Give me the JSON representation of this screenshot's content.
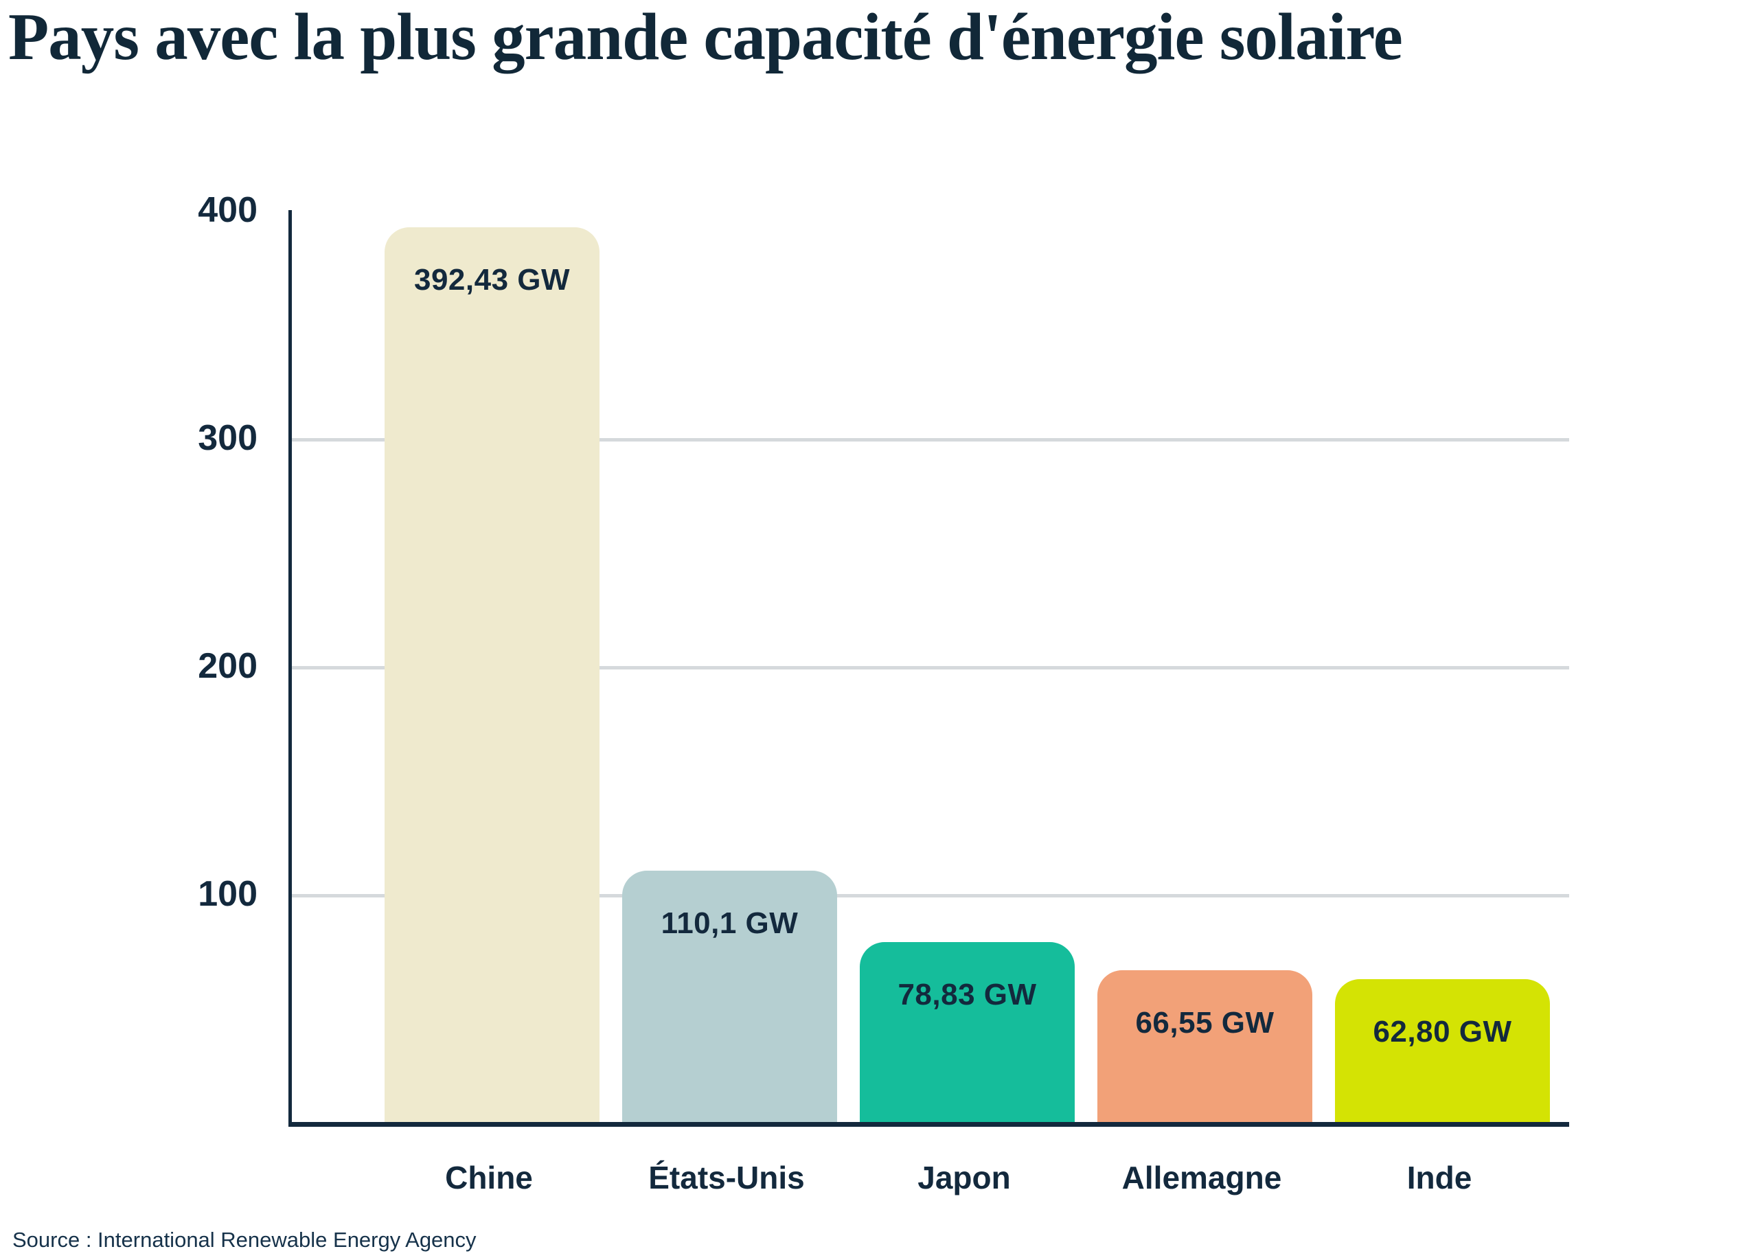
{
  "title": "Pays avec la plus grande capacité d'énergie solaire",
  "source": "Source : International Renewable Energy Agency",
  "colors": {
    "background": "#FFFFFF",
    "text": "#13293D",
    "axis": "#13293D",
    "gridline": "#D5D9DC"
  },
  "chart_data": {
    "type": "bar",
    "title": "Pays avec la plus grande capacité d'énergie solaire",
    "categories": [
      "Chine",
      "États-Unis",
      "Japon",
      "Allemagne",
      "Inde"
    ],
    "values": [
      392.43,
      110.1,
      78.83,
      66.55,
      62.8
    ],
    "value_labels": [
      "392,43 GW",
      "110,1 GW",
      "78,83 GW",
      "66,55 GW",
      "62,80 GW"
    ],
    "bar_colors": [
      "#EFEACE",
      "#B5CFD1",
      "#15BD9B",
      "#F2A178",
      "#D4E304"
    ],
    "unit": "GW",
    "xlabel": "",
    "ylabel": "",
    "ylim": [
      0,
      400
    ],
    "yticks": [
      400,
      300,
      200,
      100
    ],
    "gridline_values": [
      300,
      200,
      100
    ],
    "grid": "horizontal",
    "legend": "none",
    "source": "Source : International Renewable Energy Agency"
  }
}
